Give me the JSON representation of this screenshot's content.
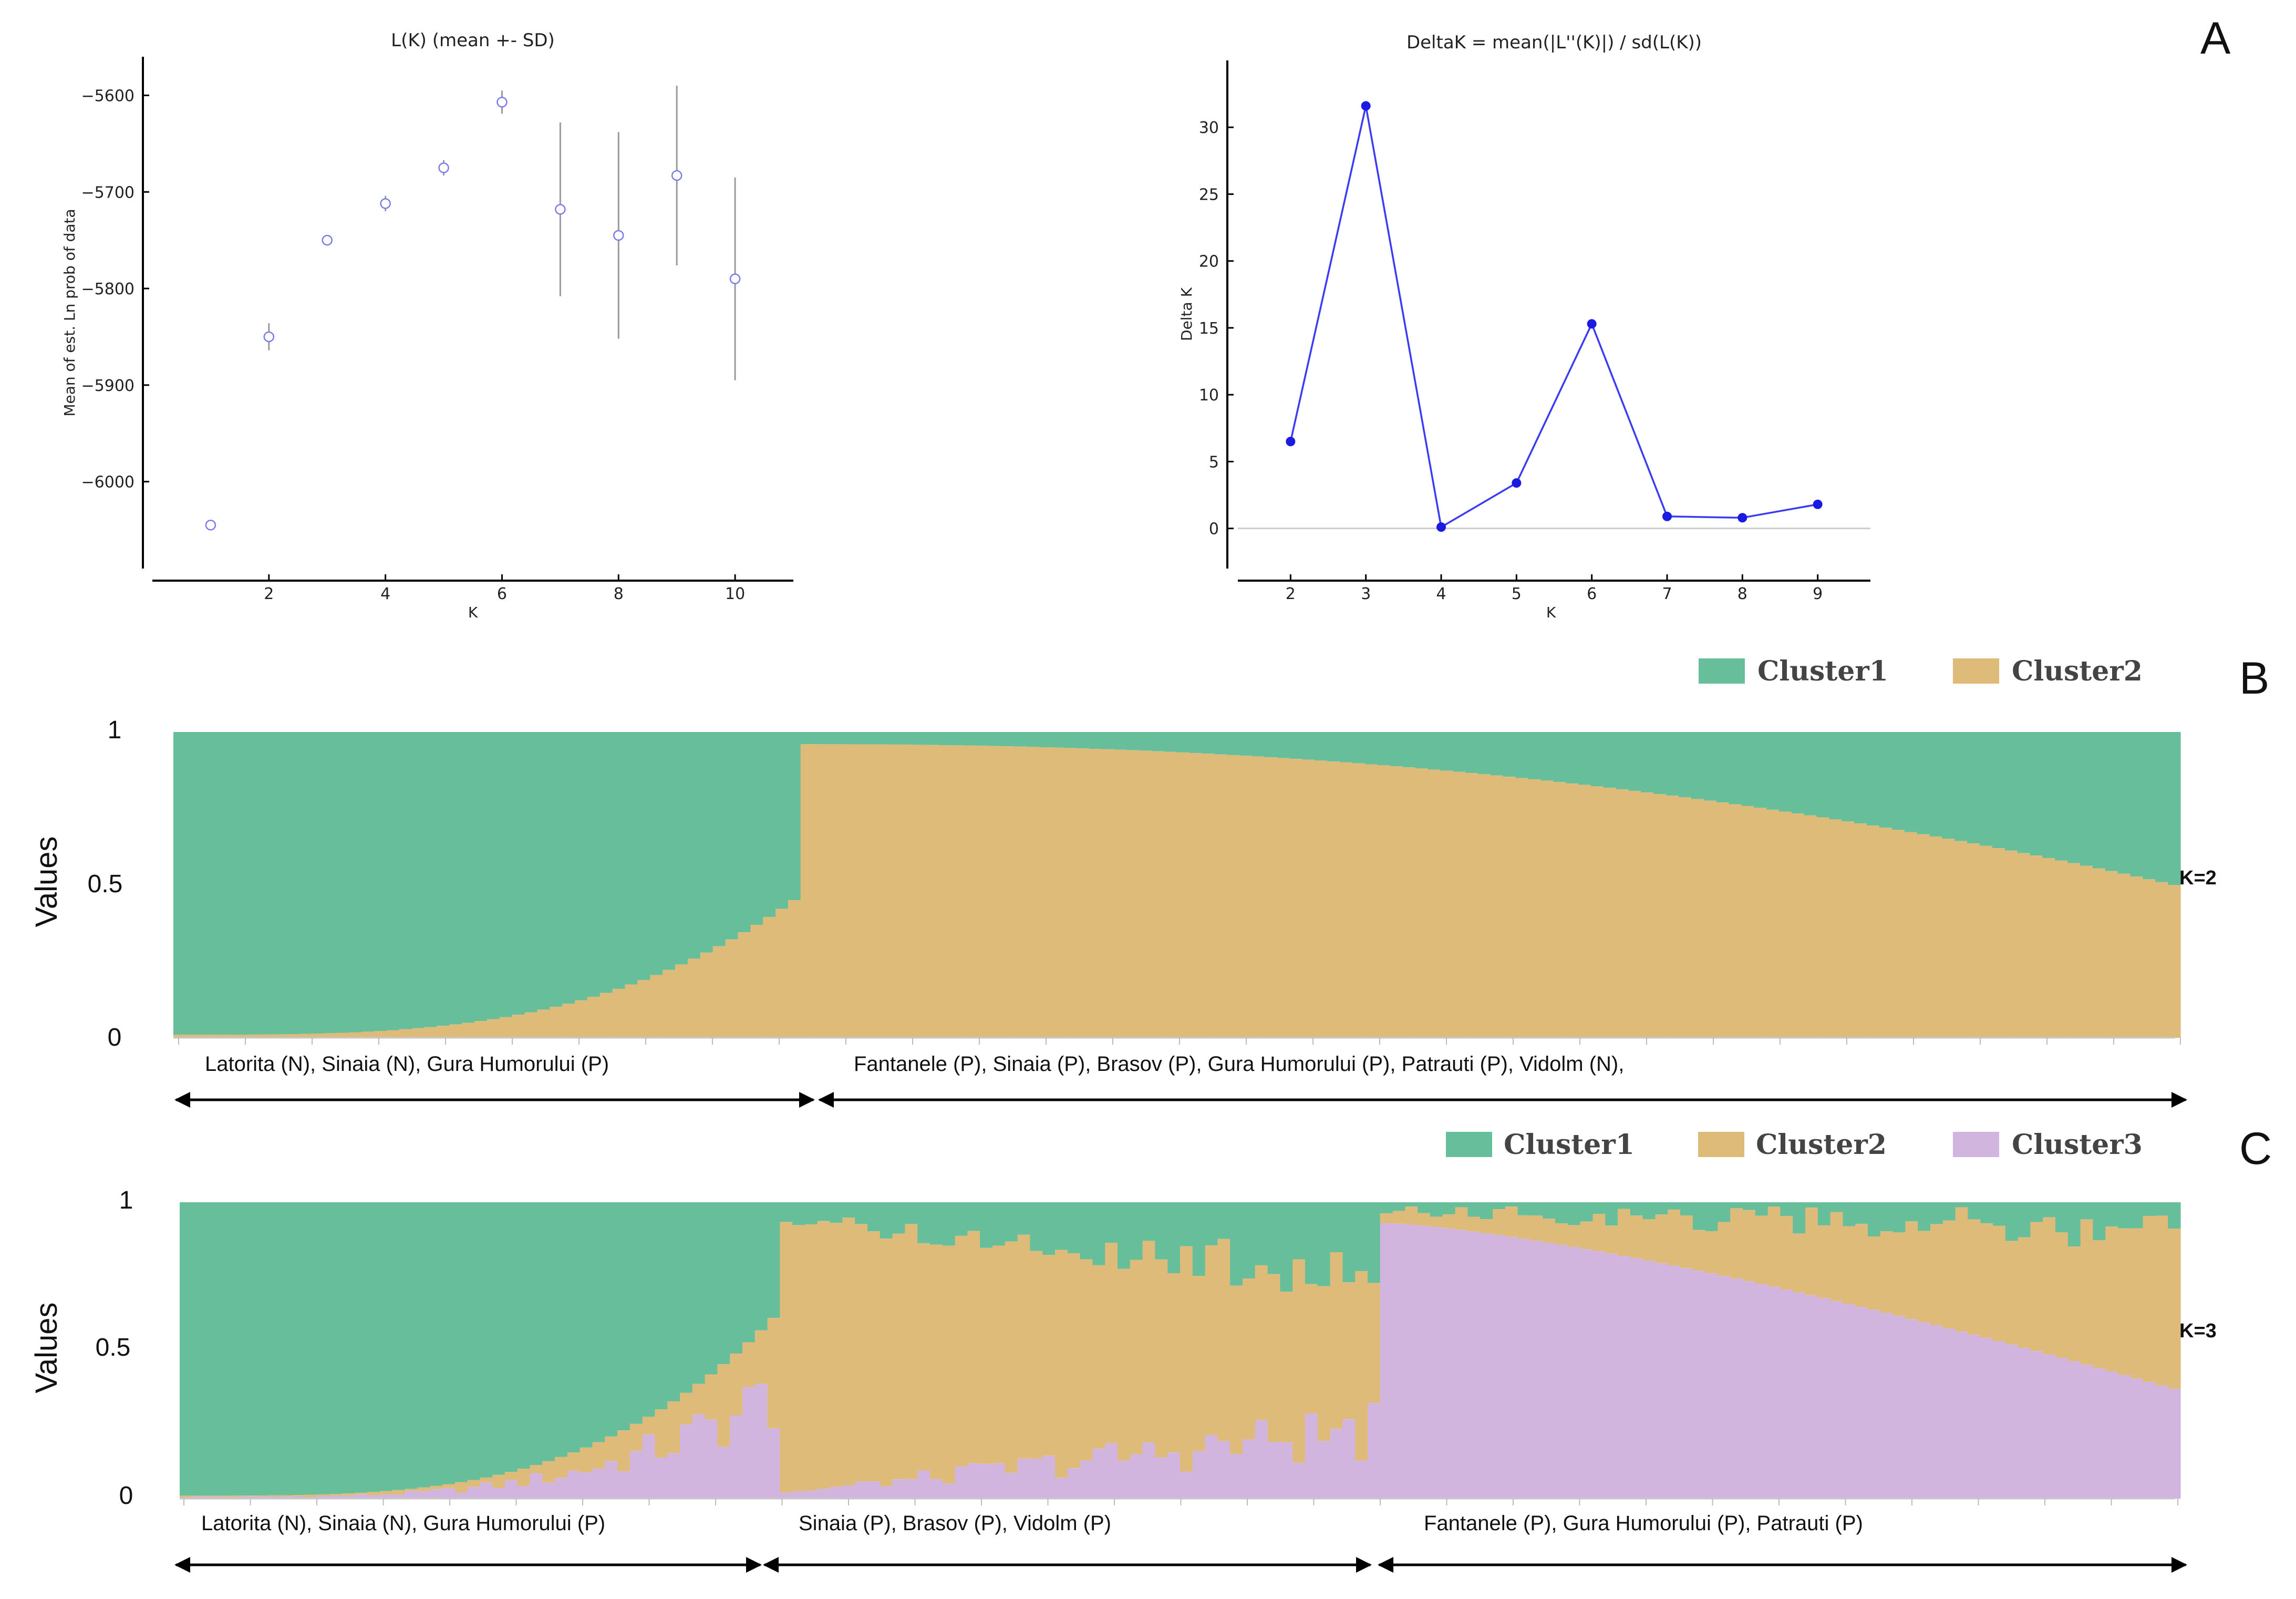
{
  "panel_letters": {
    "a": "A",
    "b": "B",
    "c": "C"
  },
  "colors": {
    "cluster1": "#67be9b",
    "cluster2": "#debb78",
    "cluster3": "#d1b5de",
    "scatter_point": "#7b7bf0",
    "deltak_line": "#3b3bf5",
    "errorbar": "#9a9a9a"
  },
  "chart_data": [
    {
      "id": "lk",
      "type": "scatter",
      "title": "L(K) (mean +- SD)",
      "xlabel": "K",
      "ylabel": "Mean of est. Ln prob of data",
      "xlim": [
        0,
        11
      ],
      "ylim": [
        -6090,
        -5560
      ],
      "xticks": [
        2,
        4,
        6,
        8,
        10
      ],
      "yticks": [
        -5600,
        -5700,
        -5800,
        -5900,
        -6000
      ],
      "ytick_labels": [
        "−5600",
        "−5700",
        "−5800",
        "−5900",
        "−6000"
      ],
      "x": [
        1,
        2,
        3,
        4,
        5,
        6,
        7,
        8,
        9,
        10
      ],
      "y": [
        -6045,
        -5850,
        -5750,
        -5712,
        -5675,
        -5607,
        -5718,
        -5745,
        -5683,
        -5790
      ],
      "sd": [
        0,
        14,
        0,
        8,
        8,
        12,
        90,
        107,
        93,
        105
      ]
    },
    {
      "id": "deltak",
      "type": "line",
      "title": "DeltaK = mean(|L''(K)|) / sd(L(K))",
      "xlabel": "K",
      "ylabel": "Delta K",
      "xlim": [
        1.3,
        9.7
      ],
      "ylim": [
        -3,
        35
      ],
      "xticks": [
        2,
        3,
        4,
        5,
        6,
        7,
        8,
        9
      ],
      "yticks": [
        0,
        5,
        10,
        15,
        20,
        25,
        30
      ],
      "x": [
        2,
        3,
        4,
        5,
        6,
        7,
        8,
        9
      ],
      "y": [
        6.5,
        31.6,
        0.1,
        3.4,
        15.3,
        0.9,
        0.8,
        1.8
      ]
    },
    {
      "id": "k2",
      "type": "bar",
      "stacked": true,
      "ylabel": "Values",
      "ytick_labels": [
        "1",
        "0.5",
        "0"
      ],
      "ylim": [
        0,
        1
      ],
      "k_label": "K=2",
      "legend": [
        "Cluster1",
        "Cluster2"
      ],
      "n_individuals": 160,
      "group_boundaries": [
        50
      ],
      "cluster2_share_by_group": [
        {
          "from": 0.01,
          "to": 0.45
        },
        {
          "from": 0.96,
          "to": 0.5
        }
      ],
      "group_labels": [
        "Latorita (N), Sinaia (N), Gura Humorului (P)",
        "Fantanele (P), Sinaia (P), Brasov (P), Gura Humorului (P), Patrauti (P),  Vidolm (N),"
      ]
    },
    {
      "id": "k3",
      "type": "bar",
      "stacked": true,
      "ylabel": "Values",
      "ytick_labels": [
        "1",
        "0.5",
        "0"
      ],
      "ylim": [
        0,
        1
      ],
      "k_label": "K=3",
      "legend": [
        "Cluster1",
        "Cluster2",
        "Cluster3"
      ],
      "n_individuals": 160,
      "group_boundaries": [
        48,
        96
      ],
      "group_labels": [
        "Latorita (N), Sinaia (N), Gura Humorului (P)",
        "Sinaia (P), Brasov (P), Vidolm (P)",
        "Fantanele (P),  Gura Humorului (P), Patrauti (P)"
      ]
    }
  ]
}
